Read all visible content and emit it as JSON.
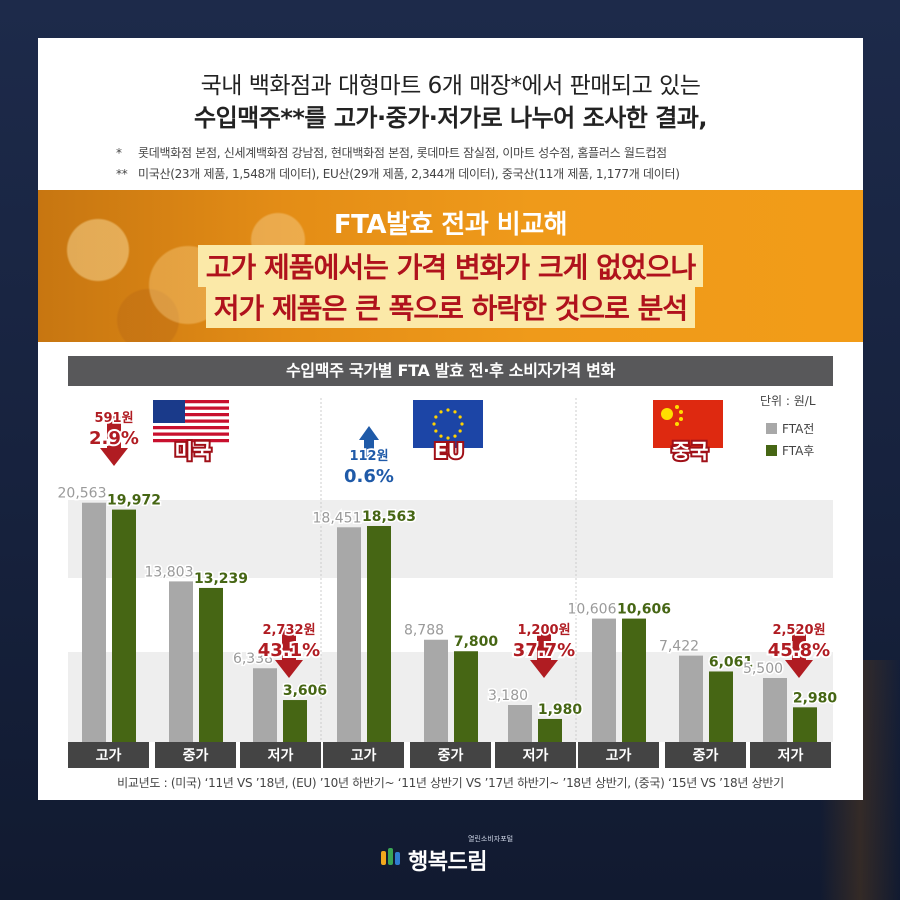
{
  "intro": {
    "line1": "국내 백화점과 대형마트 6개 매장*에서 판매되고 있는",
    "line2": "수입맥주**를 고가·중가·저가로 나누어 조사한 결과,",
    "note1_mark": "*",
    "note1": "롯데백화점 본점, 신세계백화점 강남점, 현대백화점 본점, 롯데마트 잠실점, 이마트 성수점, 홈플러스 월드컵점",
    "note2_mark": "**",
    "note2": "미국산(23개 제품, 1,548개 데이터), EU산(29개 제품, 2,344개 데이터), 중국산(11개 제품, 1,177개 데이터)"
  },
  "banner": {
    "line1": "FTA발효 전과 비교해",
    "line2": "고가 제품에서는 가격 변화가 크게 없었으나",
    "line3": "저가 제품은 큰 폭으로 하락한 것으로 분석"
  },
  "chart_title": "수입맥주 국가별 FTA 발효 전·후 소비자가격 변화",
  "unit": "단위 : 원/L",
  "footnote": "비교년도 : (미국) ‘11년 VS ’18년, (EU) ’10년 하반기~ ‘11년 상반기 VS ’17년 하반기~ ’18년 상반기, (중국) ‘15년 VS ’18년 상반기",
  "logo": {
    "text": "행복드림",
    "sub": "열린소비자포털"
  },
  "colors": {
    "before": "#a8a8a8",
    "after": "#466614",
    "down": "#b01c22",
    "up": "#1f5aa8",
    "category_bar": "#444444"
  },
  "chart_data": {
    "type": "bar",
    "ylim": [
      0,
      22000
    ],
    "legend": [
      "FTA전",
      "FTA후"
    ],
    "legend_position": "top-right",
    "categories": [
      "고가",
      "중가",
      "저가"
    ],
    "groups": [
      {
        "country": "미국",
        "flag": "usa-flag",
        "before": [
          20563,
          13803,
          6338
        ],
        "after": [
          19972,
          13239,
          3606
        ],
        "before_labels": [
          "20,563",
          "13,803",
          "6,338"
        ],
        "after_labels": [
          "19,972",
          "13,239",
          "3,606"
        ],
        "callouts": [
          {
            "category": "고가",
            "direction": "down",
            "amount": "591원",
            "percent": "2.9%"
          },
          {
            "category": "저가",
            "direction": "down",
            "amount": "2,732원",
            "percent": "43.1%"
          }
        ]
      },
      {
        "country": "EU",
        "flag": "eu-flag",
        "before": [
          18451,
          8788,
          3180
        ],
        "after": [
          18563,
          7800,
          1980
        ],
        "before_labels": [
          "18,451",
          "8,788",
          "3,180"
        ],
        "after_labels": [
          "18,563",
          "7,800",
          "1,980"
        ],
        "callouts": [
          {
            "category": "고가",
            "direction": "up",
            "amount": "112원",
            "percent": "0.6%"
          },
          {
            "category": "저가",
            "direction": "down",
            "amount": "1,200원",
            "percent": "37.7%"
          }
        ]
      },
      {
        "country": "중국",
        "flag": "china-flag",
        "before": [
          10606,
          7422,
          5500
        ],
        "after": [
          10606,
          6061,
          2980
        ],
        "before_labels": [
          "10,606",
          "7,422",
          "5,500"
        ],
        "after_labels": [
          "10,606",
          "6,061",
          "2,980"
        ],
        "callouts": [
          {
            "category": "저가",
            "direction": "down",
            "amount": "2,520원",
            "percent": "45.8%"
          }
        ]
      }
    ]
  }
}
